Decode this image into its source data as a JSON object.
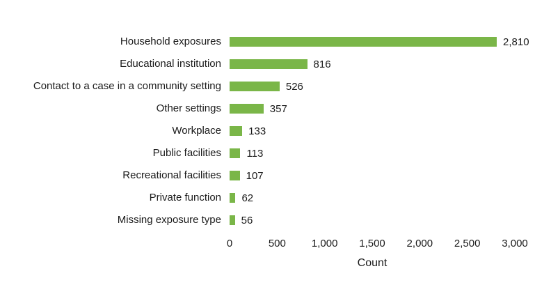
{
  "chart_data": {
    "type": "bar",
    "orientation": "horizontal",
    "title": "",
    "xlabel": "Count",
    "ylabel": "",
    "categories": [
      "Household exposures",
      "Educational institution",
      "Contact to a case in a community setting",
      "Other settings",
      "Workplace",
      "Public facilities",
      "Recreational facilities",
      "Private function",
      "Missing exposure type"
    ],
    "values": [
      2810,
      816,
      526,
      357,
      133,
      113,
      107,
      62,
      56
    ],
    "value_labels": [
      "2,810",
      "816",
      "526",
      "357",
      "133",
      "113",
      "107",
      "62",
      "56"
    ],
    "xlim": [
      0,
      3000
    ],
    "xticks": [
      0,
      500,
      1000,
      1500,
      2000,
      2500,
      3000
    ],
    "xtick_labels": [
      "0",
      "500",
      "1,000",
      "1,500",
      "2,000",
      "2,500",
      "3,000"
    ],
    "bar_color": "#7ab648",
    "text_color": "#1a1a1a",
    "background_color": "#ffffff",
    "grid": false,
    "legend": "none"
  }
}
